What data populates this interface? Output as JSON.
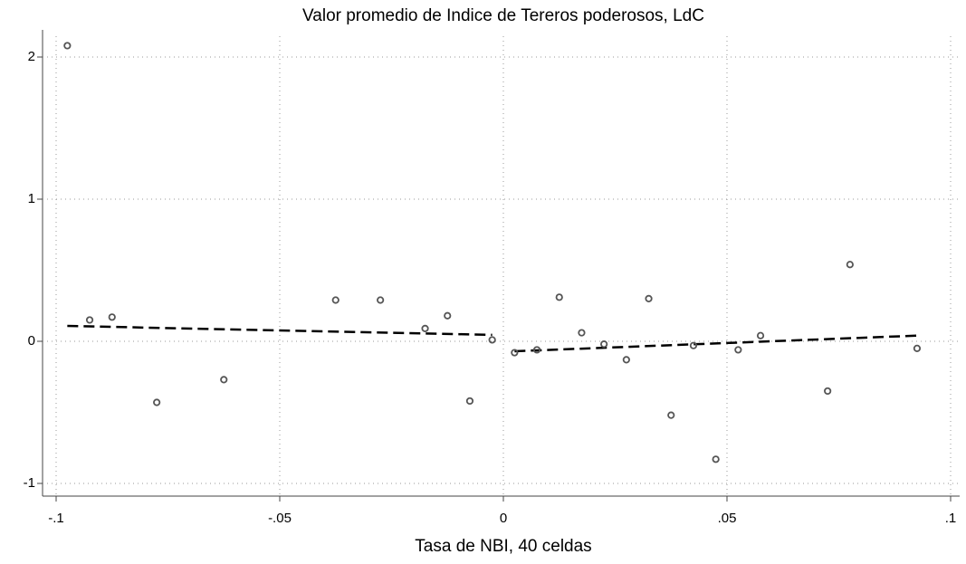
{
  "chart_data": {
    "type": "scatter",
    "title": "Valor promedio de Indice de Tereros poderosos, LdC",
    "x_label": "Tasa de NBI, 40 celdas",
    "x": [
      -0.0975,
      -0.0925,
      -0.0875,
      -0.0775,
      -0.0625,
      -0.0375,
      -0.0275,
      -0.0175,
      -0.0125,
      -0.0075,
      -0.0025,
      0.0025,
      0.0075,
      0.0125,
      0.0175,
      0.0225,
      0.0275,
      0.0325,
      0.0375,
      0.0425,
      0.0475,
      0.0525,
      0.0575,
      0.0725,
      0.0775,
      0.0925
    ],
    "values": [
      2.08,
      0.15,
      0.17,
      -0.43,
      -0.27,
      0.29,
      0.29,
      0.09,
      0.18,
      -0.42,
      0.01,
      -0.08,
      -0.06,
      0.31,
      0.06,
      -0.02,
      -0.13,
      0.3,
      -0.52,
      -0.03,
      -0.83,
      -0.06,
      0.04,
      -0.35,
      0.54,
      -0.05
    ],
    "color": "#555555",
    "fit_lines": [
      {
        "x": [
          -0.0975,
          -0.0025
        ],
        "values": [
          0.108,
          0.045
        ]
      },
      {
        "x": [
          0.0025,
          0.0925
        ],
        "values": [
          -0.07,
          0.04
        ]
      }
    ],
    "fit_color": "#000000",
    "xlim": [
      -0.1,
      0.1
    ],
    "xticks": [
      {
        "value": -0.1,
        "label": "-.1"
      },
      {
        "value": -0.05,
        "label": "-.05"
      },
      {
        "value": 0,
        "label": "0"
      },
      {
        "value": 0.05,
        "label": ".05"
      },
      {
        "value": 0.1,
        "label": ".1"
      }
    ],
    "ylim": [
      -1,
      2
    ],
    "yticks": [
      -1,
      0,
      1,
      2
    ],
    "grid": true
  }
}
